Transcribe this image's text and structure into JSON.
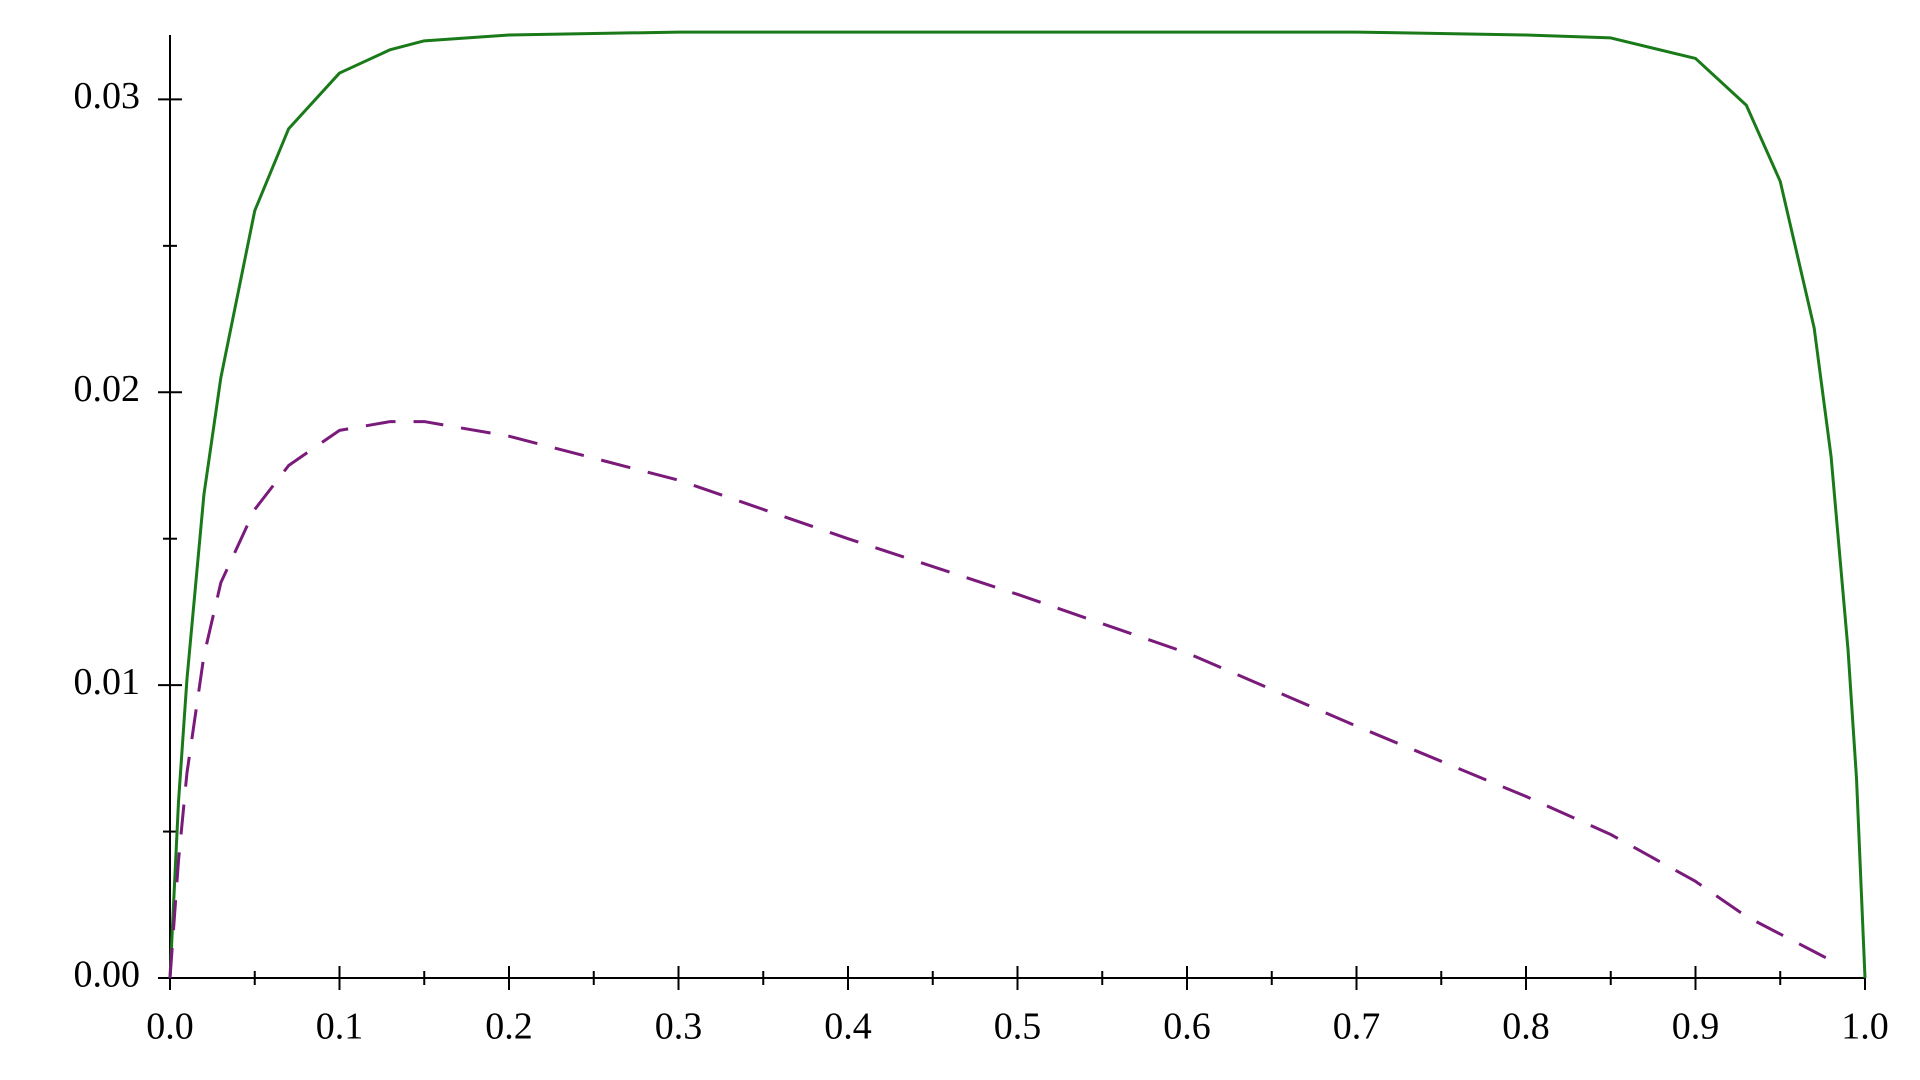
{
  "chart_data": {
    "type": "line",
    "x": [
      0,
      0.005,
      0.01,
      0.02,
      0.03,
      0.05,
      0.07,
      0.1,
      0.13,
      0.15,
      0.2,
      0.3,
      0.4,
      0.5,
      0.6,
      0.7,
      0.8,
      0.85,
      0.9,
      0.93,
      0.95,
      0.97,
      0.98,
      0.99,
      0.995,
      1
    ],
    "series": [
      {
        "color": "#1a7a1a",
        "dash": false,
        "values": [
          0,
          0.006,
          0.0102,
          0.0165,
          0.0205,
          0.0262,
          0.029,
          0.0309,
          0.0317,
          0.032,
          0.0322,
          0.0323,
          0.0323,
          0.0323,
          0.0323,
          0.0323,
          0.0322,
          0.0321,
          0.0314,
          0.0298,
          0.0272,
          0.0222,
          0.0178,
          0.0112,
          0.0068,
          0
        ]
      },
      {
        "color": "#7a1a7a",
        "dash": true,
        "values": [
          0,
          0.004,
          0.007,
          0.011,
          0.0135,
          0.016,
          0.0175,
          0.0187,
          0.019,
          0.019,
          0.0185,
          0.017,
          0.015,
          0.0131,
          0.0111,
          0.0086,
          0.0062,
          0.0049,
          0.0033,
          0.0021,
          0.0015,
          0.0009,
          0.0006,
          null,
          null,
          null
        ]
      }
    ],
    "xlim": [
      0,
      1
    ],
    "ylim": [
      0,
      0.0322
    ],
    "xticks": [
      {
        "value": 0,
        "label": "0.0"
      },
      0.1,
      0.2,
      0.3,
      0.4,
      0.5,
      0.6,
      0.7,
      0.8,
      0.9,
      {
        "value": 1,
        "label": "1.0"
      }
    ],
    "xminorticks": [
      0.05,
      0.15,
      0.25,
      0.35,
      0.45,
      0.55,
      0.65,
      0.75,
      0.85,
      0.95
    ],
    "yticks": [
      {
        "value": 0,
        "label": "0.00"
      },
      0.01,
      0.02,
      0.03
    ],
    "yminorticks": [
      0.005,
      0.015,
      0.025
    ]
  }
}
